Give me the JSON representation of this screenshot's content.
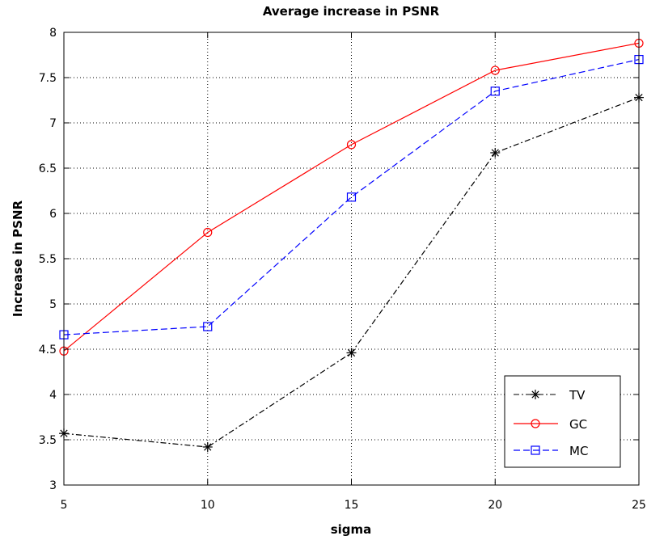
{
  "chart_data": {
    "type": "line",
    "title": "Average increase in PSNR",
    "xlabel": "sigma",
    "ylabel": "Increase in PSNR",
    "xlim": [
      5,
      25
    ],
    "ylim": [
      3,
      8
    ],
    "xticks": [
      5,
      10,
      15,
      20,
      25
    ],
    "yticks": [
      3,
      3.5,
      4,
      4.5,
      5,
      5.5,
      6,
      6.5,
      7,
      7.5,
      8
    ],
    "x_tick_labels": [
      "5",
      "10",
      "15",
      "20",
      "25"
    ],
    "y_tick_labels": [
      "3",
      "3.5",
      "4",
      "4.5",
      "5",
      "5.5",
      "6",
      "6.5",
      "7",
      "7.5",
      "8"
    ],
    "grid": true,
    "grid_style": "dotted",
    "legend_position": "bottom-right",
    "x": [
      5,
      10,
      15,
      20,
      25
    ],
    "series": [
      {
        "name": "TV",
        "values": [
          3.57,
          3.42,
          4.46,
          6.67,
          7.28
        ],
        "color": "#000000",
        "line_style": "dash-dot",
        "marker": "asterisk"
      },
      {
        "name": "GC",
        "values": [
          4.48,
          5.79,
          6.76,
          7.58,
          7.88
        ],
        "color": "#ff0000",
        "line_style": "solid",
        "marker": "circle"
      },
      {
        "name": "MC",
        "values": [
          4.66,
          4.75,
          6.18,
          7.35,
          7.7
        ],
        "color": "#0000ff",
        "line_style": "dashed",
        "marker": "square"
      }
    ]
  }
}
